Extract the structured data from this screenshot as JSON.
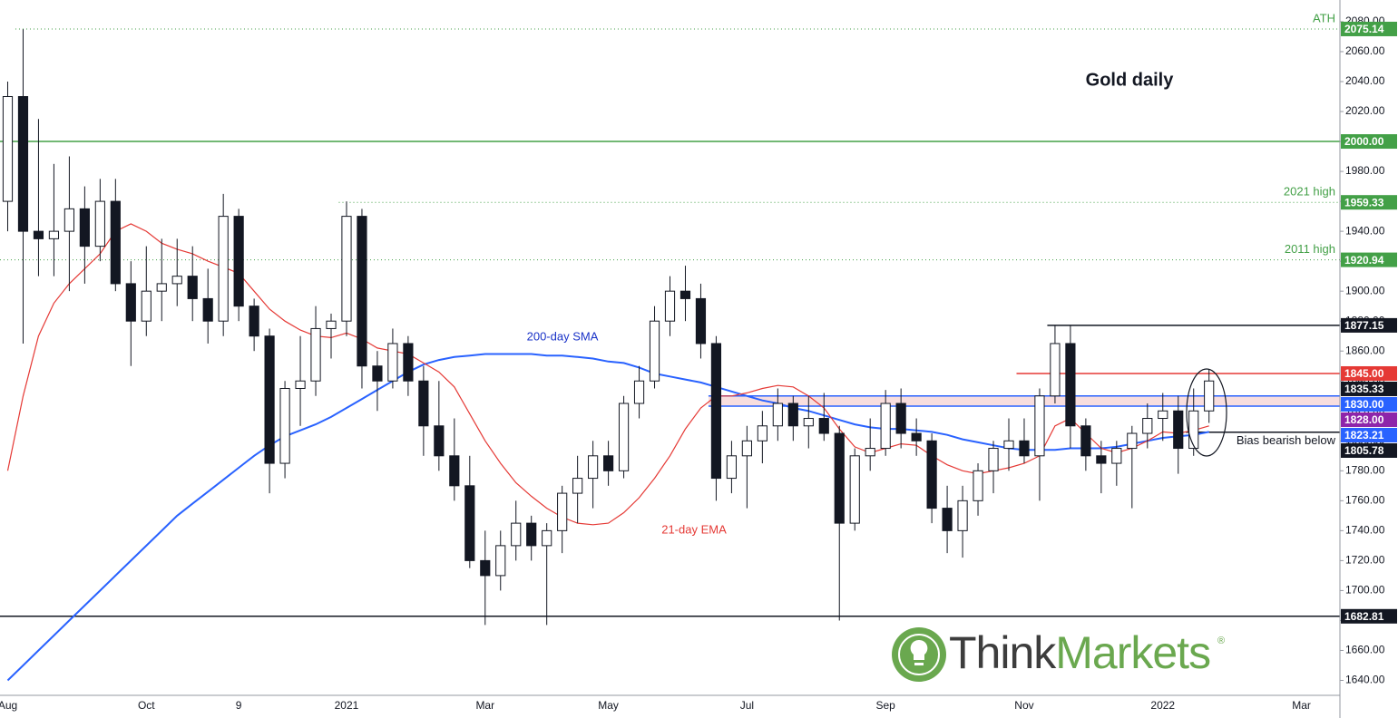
{
  "chart_data": {
    "type": "candlestick",
    "title": "Gold daily",
    "categories": [
      "Aug",
      null,
      null,
      null,
      null,
      null,
      null,
      null,
      null,
      "Oct",
      null,
      null,
      null,
      null,
      null,
      "9",
      null,
      null,
      null,
      null,
      null,
      null,
      "2021",
      null,
      null,
      null,
      null,
      null,
      null,
      null,
      null,
      "Mar",
      null,
      null,
      null,
      null,
      null,
      null,
      null,
      "May",
      null,
      null,
      null,
      null,
      null,
      null,
      null,
      null,
      "Jul",
      null,
      null,
      null,
      null,
      null,
      null,
      null,
      null,
      "Sep",
      null,
      null,
      null,
      null,
      null,
      null,
      null,
      null,
      "Nov",
      null,
      null,
      null,
      null,
      null,
      null,
      null,
      null,
      "2022",
      null,
      null,
      null,
      null,
      null,
      null,
      null,
      null,
      "Mar",
      null,
      null
    ],
    "open": [
      1960,
      2030,
      1940,
      1935,
      1940,
      1955,
      1930,
      1960,
      1905,
      1880,
      1900,
      1905,
      1910,
      1895,
      1880,
      1950,
      1890,
      1870,
      1785,
      1835,
      1840,
      1875,
      1880,
      1950,
      1850,
      1840,
      1865,
      1840,
      1810,
      1790,
      1770,
      1720,
      1710,
      1730,
      1745,
      1730,
      1740,
      1765,
      1775,
      1790,
      1780,
      1825,
      1840,
      1880,
      1900,
      1895,
      1865,
      1775,
      1790,
      1800,
      1810,
      1825,
      1810,
      1815,
      1805,
      1745,
      1790,
      1795,
      1825,
      1805,
      1800,
      1755,
      1740,
      1760,
      1780,
      1795,
      1800,
      1790,
      1830,
      1865,
      1810,
      1790,
      1785,
      1795,
      1805,
      1815,
      1820,
      1795,
      1820,
      null,
      null,
      null,
      null,
      null,
      null,
      null,
      null
    ],
    "high": [
      2040,
      2075,
      2015,
      1985,
      1990,
      1970,
      1975,
      1975,
      1920,
      1930,
      1935,
      1935,
      1930,
      1915,
      1965,
      1955,
      1895,
      1875,
      1840,
      1870,
      1890,
      1885,
      1960,
      1955,
      1860,
      1875,
      1870,
      1850,
      1840,
      1815,
      1790,
      1740,
      1740,
      1760,
      1750,
      1745,
      1770,
      1790,
      1800,
      1800,
      1830,
      1850,
      1890,
      1910,
      1917,
      1905,
      1870,
      1800,
      1810,
      1820,
      1835,
      1830,
      1830,
      1832,
      1810,
      1795,
      1815,
      1834,
      1835,
      1815,
      1805,
      1770,
      1770,
      1785,
      1800,
      1815,
      1815,
      1835,
      1877,
      1877,
      1815,
      1800,
      1800,
      1810,
      1825,
      1832,
      1830,
      1835,
      1848,
      null,
      null,
      null,
      null,
      null,
      null,
      null,
      null
    ],
    "low": [
      1940,
      1865,
      1910,
      1910,
      1900,
      1905,
      1920,
      1900,
      1850,
      1870,
      1880,
      1890,
      1880,
      1865,
      1870,
      1880,
      1860,
      1765,
      1775,
      1810,
      1830,
      1855,
      1870,
      1835,
      1820,
      1835,
      1830,
      1790,
      1780,
      1760,
      1715,
      1677,
      1700,
      1720,
      1720,
      1677,
      1725,
      1745,
      1755,
      1770,
      1775,
      1815,
      1835,
      1870,
      1880,
      1855,
      1760,
      1765,
      1755,
      1785,
      1800,
      1800,
      1795,
      1800,
      1680,
      1740,
      1780,
      1790,
      1795,
      1790,
      1745,
      1725,
      1722,
      1750,
      1765,
      1780,
      1785,
      1760,
      1825,
      1795,
      1780,
      1765,
      1770,
      1755,
      1795,
      1800,
      1778,
      1790,
      1812,
      null,
      null,
      null,
      null,
      null,
      null,
      null,
      null
    ],
    "close": [
      2030,
      1940,
      1935,
      1940,
      1955,
      1930,
      1960,
      1905,
      1880,
      1900,
      1905,
      1910,
      1895,
      1880,
      1950,
      1890,
      1870,
      1785,
      1835,
      1840,
      1875,
      1880,
      1950,
      1850,
      1840,
      1865,
      1840,
      1810,
      1790,
      1770,
      1720,
      1710,
      1730,
      1745,
      1730,
      1740,
      1765,
      1775,
      1790,
      1780,
      1825,
      1840,
      1880,
      1900,
      1895,
      1865,
      1775,
      1790,
      1800,
      1810,
      1825,
      1810,
      1815,
      1805,
      1745,
      1790,
      1795,
      1825,
      1805,
      1800,
      1755,
      1740,
      1760,
      1780,
      1795,
      1800,
      1790,
      1830,
      1865,
      1810,
      1790,
      1785,
      1795,
      1805,
      1815,
      1820,
      1795,
      1820,
      1840,
      null,
      null,
      null,
      null,
      null,
      null,
      null,
      null
    ],
    "lines": [
      {
        "name": "200-day SMA",
        "color": "#2962ff",
        "values": [
          1640,
          1650,
          1660,
          1670,
          1680,
          1690,
          1700,
          1710,
          1720,
          1730,
          1740,
          1750,
          1758,
          1766,
          1774,
          1782,
          1790,
          1797,
          1803,
          1807,
          1811,
          1816,
          1822,
          1828,
          1834,
          1840,
          1846,
          1851,
          1854,
          1856,
          1857,
          1858,
          1858,
          1858,
          1858,
          1857,
          1857,
          1856,
          1855,
          1853,
          1852,
          1849,
          1845,
          1843,
          1841,
          1839,
          1836,
          1833,
          1830,
          1827,
          1825,
          1822,
          1820,
          1817,
          1814,
          1811,
          1809,
          1808,
          1808,
          1807,
          1806,
          1804,
          1801,
          1799,
          1797,
          1795,
          1794,
          1794,
          1794,
          1795,
          1795,
          1795,
          1796,
          1798,
          1800,
          1802,
          1803,
          1804,
          1806,
          null,
          null,
          null,
          null,
          null,
          null,
          null,
          null
        ]
      },
      {
        "name": "21-day EMA",
        "color": "#e53935",
        "values": [
          1780,
          1830,
          1870,
          1892,
          1905,
          1915,
          1925,
          1940,
          1945,
          1940,
          1932,
          1928,
          1925,
          1920,
          1916,
          1912,
          1900,
          1888,
          1880,
          1874,
          1870,
          1869,
          1872,
          1868,
          1862,
          1860,
          1858,
          1852,
          1846,
          1836,
          1818,
          1800,
          1785,
          1772,
          1763,
          1755,
          1749,
          1745,
          1744,
          1745,
          1752,
          1762,
          1775,
          1790,
          1808,
          1822,
          1830,
          1830,
          1832,
          1835,
          1837,
          1836,
          1830,
          1822,
          1808,
          1796,
          1792,
          1795,
          1798,
          1797,
          1790,
          1784,
          1780,
          1778,
          1780,
          1782,
          1785,
          1790,
          1810,
          1815,
          1805,
          1795,
          1792,
          1795,
          1800,
          1806,
          1805,
          1807,
          1810,
          null,
          null,
          null,
          null,
          null,
          null,
          null,
          null
        ]
      }
    ],
    "ylim": [
      1630,
      2094.5
    ],
    "yticks": [
      {
        "value": 1640,
        "label": "1640.00"
      },
      {
        "value": 1660,
        "label": "1660.00"
      },
      {
        "value": 1680,
        "label": "1680.00"
      },
      {
        "value": 1700,
        "label": "1700.00"
      },
      {
        "value": 1720,
        "label": "1720.00"
      },
      {
        "value": 1740,
        "label": "1740.00"
      },
      {
        "value": 1760,
        "label": "1760.00"
      },
      {
        "value": 1780,
        "label": "1780.00"
      },
      {
        "value": 1800,
        "label": "1800.00"
      },
      {
        "value": 1820,
        "label": "1820.00"
      },
      {
        "value": 1840,
        "label": "1840.00"
      },
      {
        "value": 1860,
        "label": "1860.00"
      },
      {
        "value": 1880,
        "label": "1880.00"
      },
      {
        "value": 1900,
        "label": "1900.00"
      },
      {
        "value": 1920,
        "label": "1920.00"
      },
      {
        "value": 1940,
        "label": "1940.00"
      },
      {
        "value": 1960,
        "label": "1960.00"
      },
      {
        "value": 1980,
        "label": "1980.00"
      },
      {
        "value": 2000,
        "label": "2000.00"
      },
      {
        "value": 2020,
        "label": "2020.00"
      },
      {
        "value": 2040,
        "label": "2040.00"
      },
      {
        "value": 2060,
        "label": "2060.00"
      },
      {
        "value": 2080,
        "label": "2080.00"
      }
    ],
    "grid": false,
    "zone": {
      "low": 1823.21,
      "high": 1830,
      "start": 46,
      "color": "#f8dede"
    },
    "levels": [
      {
        "value": 2075.14,
        "label": "2075.14",
        "color": "#43a047",
        "line": "dotted",
        "start": 1,
        "note": "ATH",
        "note_position": "above"
      },
      {
        "value": 2000,
        "label": "2000.00",
        "color": "#43a047",
        "line": "solid",
        "start": 0
      },
      {
        "value": 1959.33,
        "label": "1959.33",
        "color": "#43a047",
        "line": "dotted",
        "start": 22,
        "note": "2021 high",
        "note_position": "above"
      },
      {
        "value": 1920.94,
        "label": "1920.94",
        "color": "#43a047",
        "line": "dotted",
        "start": 0,
        "note": "2011 high",
        "note_position": "above"
      },
      {
        "value": 1877.15,
        "label": "1877.15",
        "color": "#131722",
        "line": "solid",
        "start": 68
      },
      {
        "value": 1845,
        "label": "1845.00",
        "color": "#e53935",
        "line": "solid",
        "start": 66
      },
      {
        "value": 1835.33,
        "label": "1835.33",
        "color": "#131722",
        "line": "none"
      },
      {
        "value": 1830,
        "label": "1830.00",
        "color": "#2962ff",
        "line": "solid",
        "start": 46
      },
      {
        "value": 1828,
        "label": "1828.00",
        "color": "#8e24aa",
        "line": "none"
      },
      {
        "value": 1823.21,
        "label": "1823.21",
        "color": "#2962ff",
        "line": "solid",
        "start": 46
      },
      {
        "value": 1805.78,
        "label": "1805.78",
        "color": "#131722",
        "line": "solid",
        "start": 77,
        "note": "Bias bearish below",
        "note_position": "below"
      },
      {
        "value": 1682.81,
        "label": "1682.81",
        "color": "#131722",
        "line": "solid",
        "start": 0
      }
    ],
    "annotations": [
      "200-day SMA",
      "21-day EMA"
    ],
    "watermark": [
      "Think",
      "Markets"
    ]
  }
}
